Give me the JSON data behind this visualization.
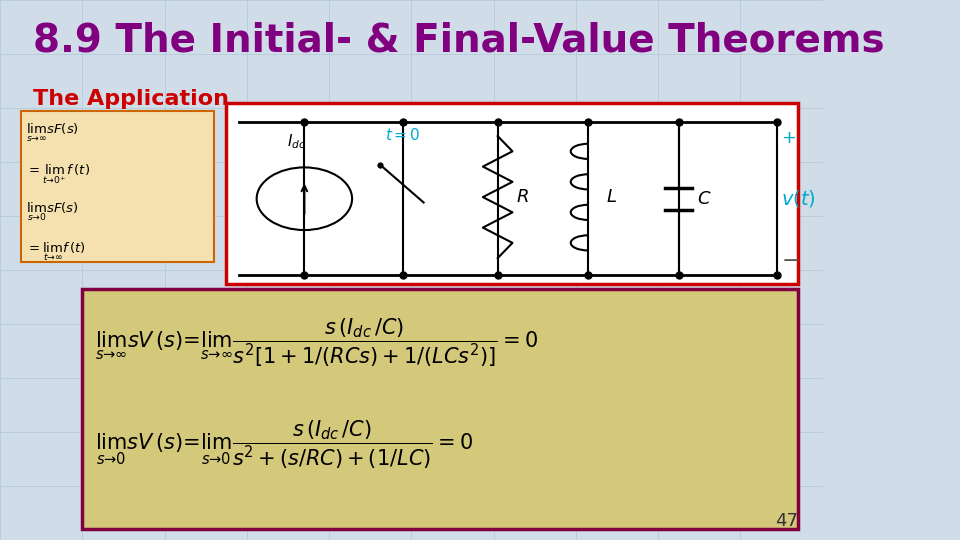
{
  "title": "8.9 The Initial- & Final-Value Theorems",
  "subtitle": "The Application",
  "title_color": "#800080",
  "subtitle_color": "#cc0000",
  "background_color": "#d0dce8",
  "circuit_box_color": "#ffffff",
  "circuit_box_border": "#cc0000",
  "formula_box_color": "#d4c87a",
  "formula_box_border": "#800040",
  "slide_number": "47",
  "grid_color": "#b0c8d8"
}
